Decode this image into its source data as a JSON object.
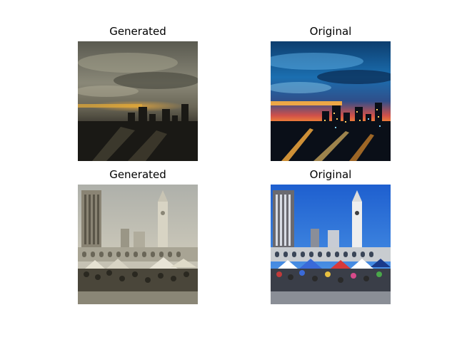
{
  "panels": [
    {
      "title": "Generated",
      "subject": "city skyline at sunset with storm clouds",
      "palette": "desaturated sepia"
    },
    {
      "title": "Original",
      "subject": "city skyline at sunset with storm clouds",
      "palette": "vivid blue and orange"
    },
    {
      "title": "Generated",
      "subject": "ferry building clock tower with market crowd",
      "palette": "desaturated sepia"
    },
    {
      "title": "Original",
      "subject": "ferry building clock tower with market crowd",
      "palette": "vivid blue sky"
    }
  ],
  "colors": {
    "background": "#ffffff",
    "title_text": "#000000",
    "night_sky_original": "#1b6fb0",
    "sunset_orange": "#ff9a2e",
    "day_sky_original": "#2f73d6",
    "sepia_dark": "#3a3a32",
    "sepia_light": "#c9c6b8"
  }
}
